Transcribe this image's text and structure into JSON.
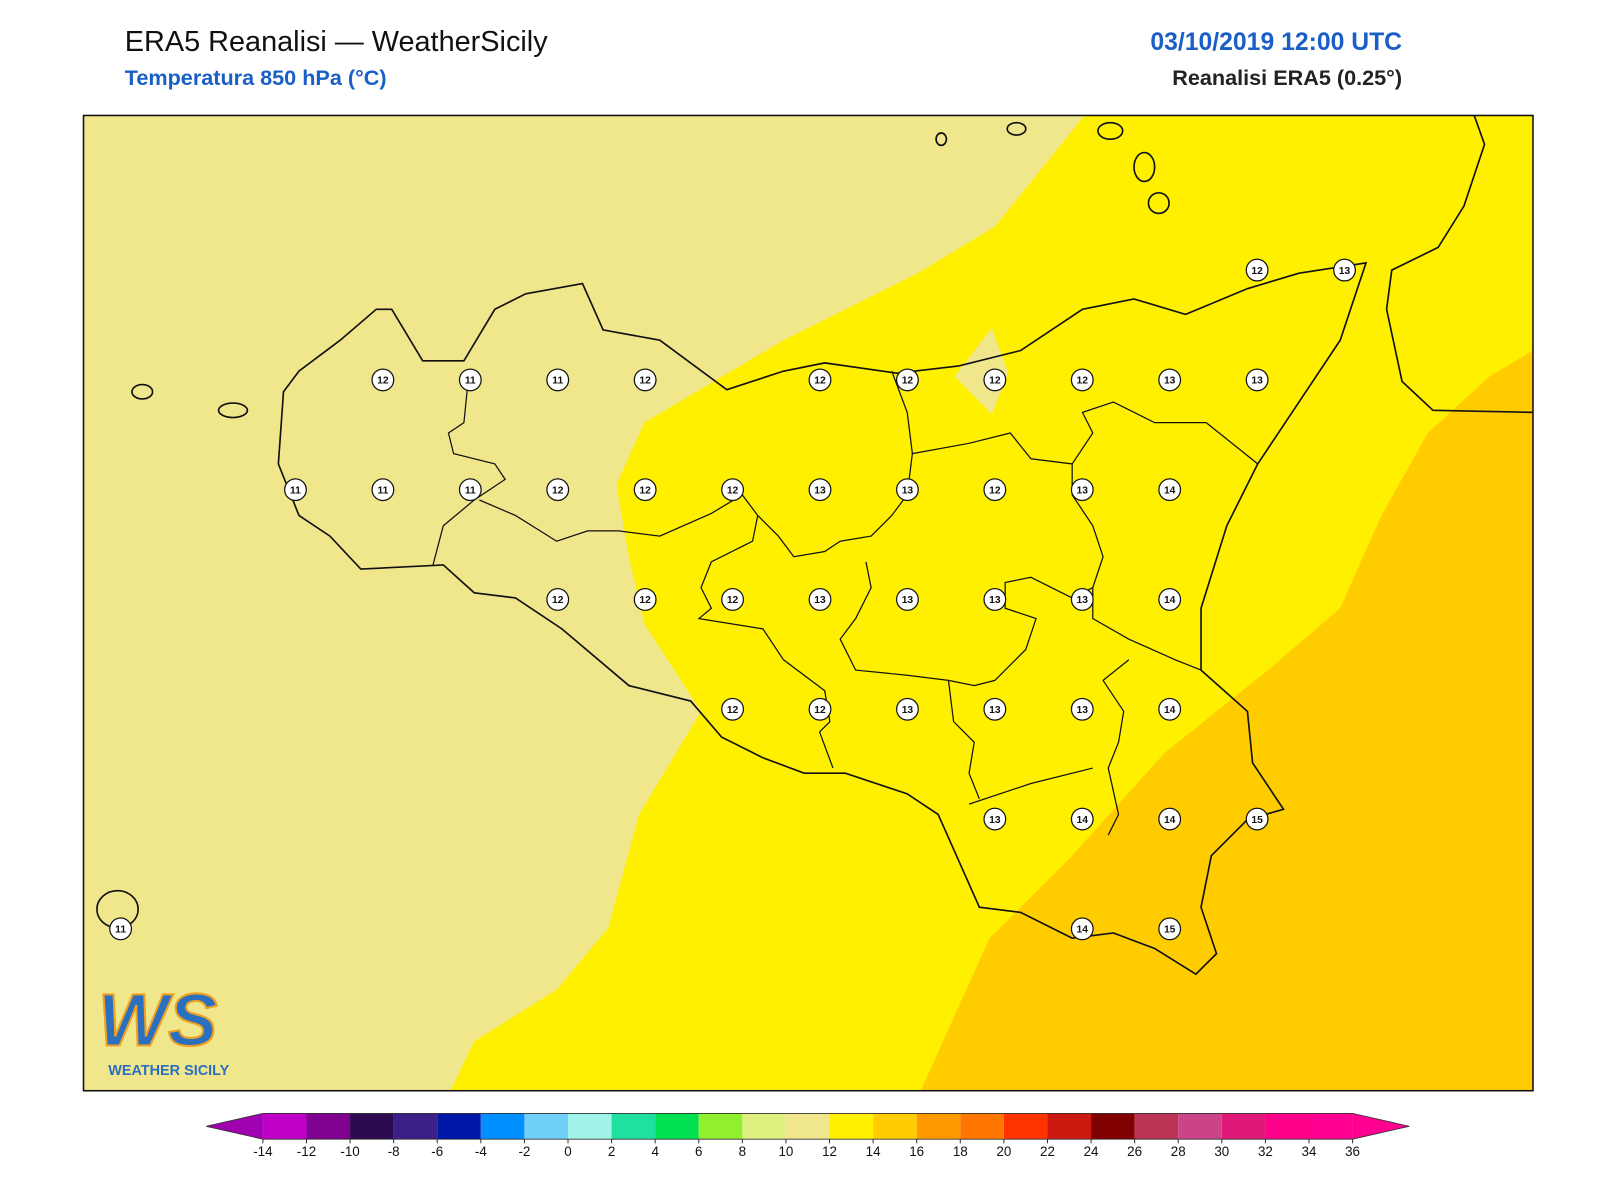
{
  "header": {
    "title": "ERA5 Reanalisi — WeatherSicily",
    "subtitle": "Temperatura 850 hPa (°C)",
    "date": "03/10/2019 12:00 UTC",
    "source": "Reanalisi ERA5 (0.25°)"
  },
  "stations": {
    "grid": [
      [
        null,
        null,
        null,
        null,
        null,
        null,
        null,
        null,
        null,
        null,
        null,
        null,
        null,
        12,
        13
      ],
      [
        null,
        null,
        null,
        12,
        11,
        11,
        12,
        null,
        12,
        12,
        12,
        12,
        13,
        13,
        null
      ],
      [
        null,
        null,
        11,
        11,
        11,
        12,
        12,
        12,
        13,
        13,
        12,
        13,
        14,
        null,
        null
      ],
      [
        null,
        null,
        null,
        null,
        null,
        12,
        12,
        12,
        13,
        13,
        13,
        13,
        14,
        null,
        null
      ],
      [
        null,
        null,
        null,
        null,
        null,
        null,
        null,
        12,
        12,
        13,
        13,
        13,
        14,
        null,
        null
      ],
      [
        null,
        null,
        null,
        null,
        null,
        null,
        null,
        null,
        null,
        null,
        13,
        14,
        14,
        15,
        null
      ],
      [
        11,
        null,
        null,
        null,
        null,
        null,
        null,
        null,
        null,
        null,
        null,
        14,
        15,
        null,
        null
      ]
    ]
  },
  "colorbar": {
    "ticks": [
      -14,
      -12,
      -10,
      -8,
      -6,
      -4,
      -2,
      0,
      2,
      4,
      6,
      8,
      10,
      12,
      14,
      16,
      18,
      20,
      22,
      24,
      26,
      28,
      30,
      32,
      34,
      36
    ],
    "colors": [
      "#c000c8",
      "#800090",
      "#2e0a50",
      "#3c208a",
      "#0018a8",
      "#0090ff",
      "#70d0f8",
      "#a0f4e8",
      "#20e0a0",
      "#00e050",
      "#90f030",
      "#e0f080",
      "#f0e68c",
      "#fff000",
      "#ffcc00",
      "#ff9900",
      "#ff7700",
      "#ff3300",
      "#cc1a10",
      "#800000",
      "#bb3355",
      "#cc4488",
      "#e01878",
      "#ff0088",
      "#ff0090"
    ],
    "under": "#a000b0",
    "over": "#ff0090"
  },
  "logo": {
    "mark": "WS",
    "text": "WEATHER SICILY"
  }
}
